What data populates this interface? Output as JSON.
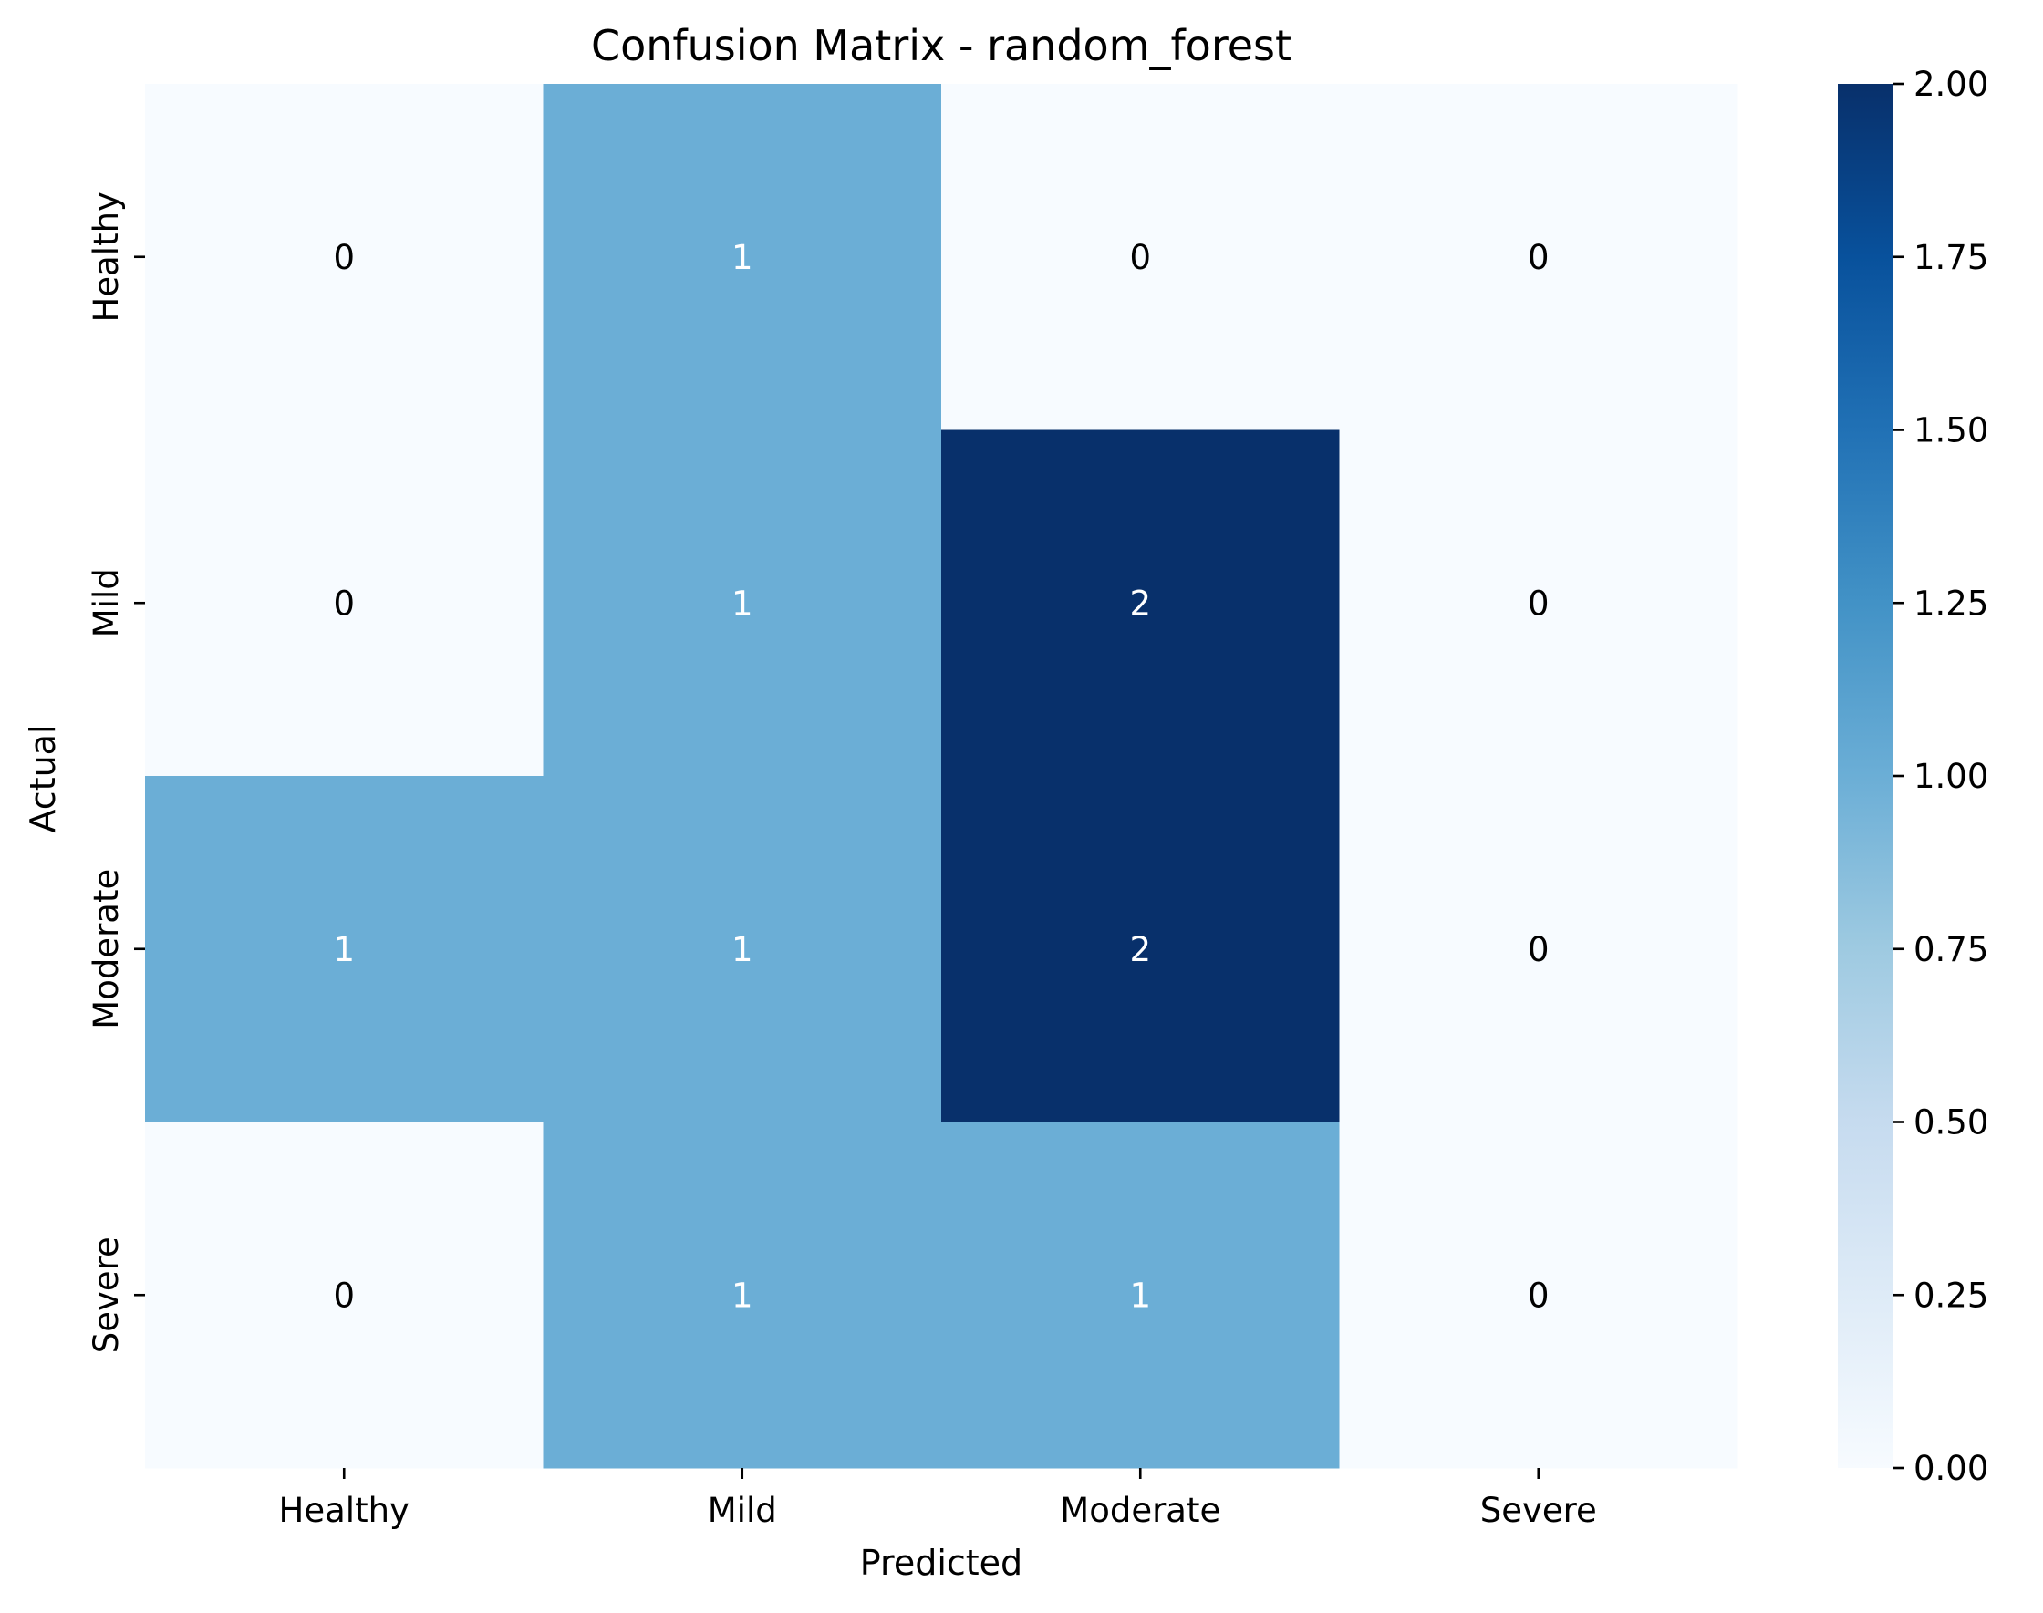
{
  "chart_data": {
    "type": "heatmap",
    "title": "Confusion Matrix - random_forest",
    "xlabel": "Predicted",
    "ylabel": "Actual",
    "x_categories": [
      "Healthy",
      "Mild",
      "Moderate",
      "Severe"
    ],
    "y_categories": [
      "Healthy",
      "Mild",
      "Moderate",
      "Severe"
    ],
    "values": [
      [
        0,
        1,
        0,
        0
      ],
      [
        0,
        1,
        2,
        0
      ],
      [
        1,
        1,
        2,
        0
      ],
      [
        0,
        1,
        1,
        0
      ]
    ],
    "colormap": "Blues",
    "colorbar": {
      "range": [
        0,
        2
      ],
      "ticks": [
        "0.00",
        "0.25",
        "0.50",
        "0.75",
        "1.00",
        "1.25",
        "1.50",
        "1.75",
        "2.00"
      ]
    },
    "colors": {
      "low": "#f7fbff",
      "mid": "#6baed6",
      "high": "#08306b",
      "text_dark": "#000000",
      "text_light": "#ffffff"
    }
  }
}
